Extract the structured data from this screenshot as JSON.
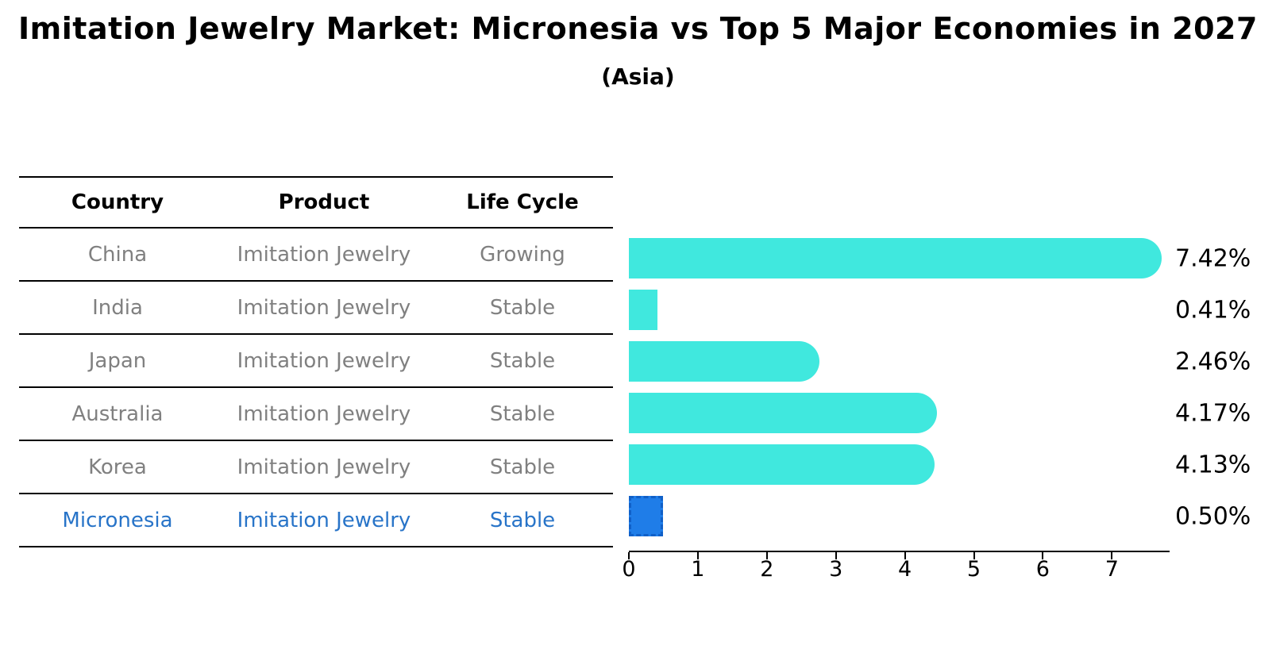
{
  "chart_data": {
    "type": "bar",
    "orientation": "horizontal",
    "title": "Imitation Jewelry Market: Micronesia vs Top 5 Major Economies in 2027",
    "subtitle": "(Asia)",
    "categories": [
      "China",
      "India",
      "Japan",
      "Australia",
      "Korea",
      "Micronesia"
    ],
    "values": [
      7.42,
      0.41,
      2.46,
      4.17,
      4.13,
      0.5
    ],
    "labels": [
      "7.42%",
      "0.41%",
      "2.46%",
      "4.17%",
      "4.13%",
      "0.50%"
    ],
    "highlight_index": 5,
    "xlim": [
      0,
      7.8
    ],
    "x_ticks": [
      "0",
      "1",
      "2",
      "3",
      "4",
      "5",
      "6",
      "7"
    ],
    "grid": false,
    "legend": "none"
  },
  "table": {
    "headers": [
      "Country",
      "Product",
      "Life Cycle"
    ],
    "rows": [
      {
        "country": "China",
        "product": "Imitation Jewelry",
        "life_cycle": "Growing",
        "highlight": false
      },
      {
        "country": "India",
        "product": "Imitation Jewelry",
        "life_cycle": "Stable",
        "highlight": false
      },
      {
        "country": "Japan",
        "product": "Imitation Jewelry",
        "life_cycle": "Stable",
        "highlight": false
      },
      {
        "country": "Australia",
        "product": "Imitation Jewelry",
        "life_cycle": "Stable",
        "highlight": false
      },
      {
        "country": "Korea",
        "product": "Imitation Jewelry",
        "life_cycle": "Stable",
        "highlight": false
      },
      {
        "country": "Micronesia",
        "product": "Imitation Jewelry",
        "life_cycle": "Stable",
        "highlight": true
      }
    ]
  },
  "colors": {
    "bar": "#40e8de",
    "highlight_bar": "#1f7de8",
    "highlight_border": "#1060c8",
    "row_text": "#808080",
    "highlight_text": "#2874c8",
    "axis_line": "#000000"
  }
}
